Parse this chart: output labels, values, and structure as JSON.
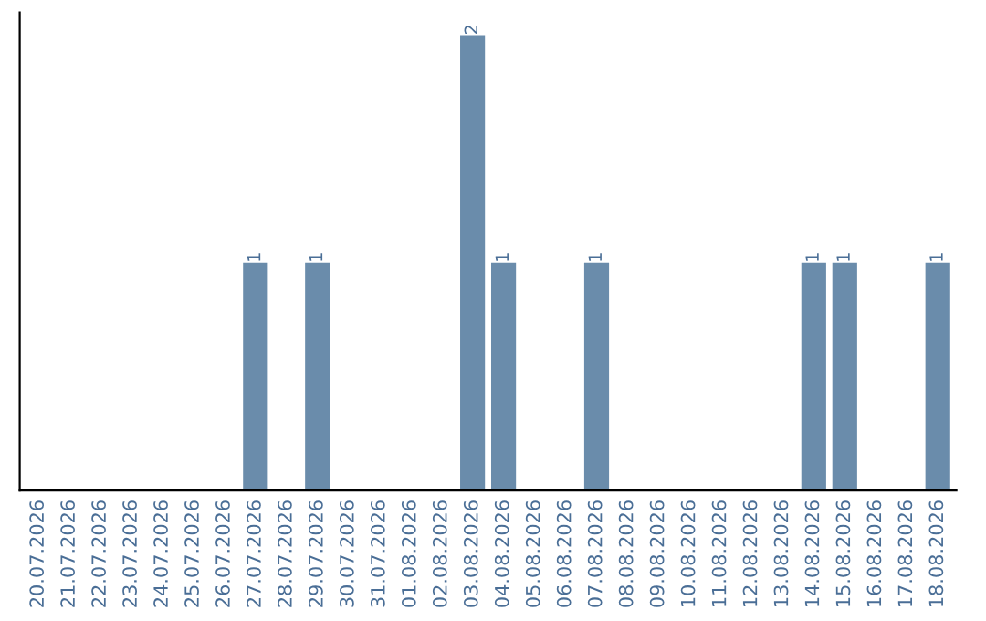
{
  "chart_data": {
    "type": "bar",
    "categories": [
      "20.07.2026",
      "21.07.2026",
      "22.07.2026",
      "23.07.2026",
      "24.07.2026",
      "25.07.2026",
      "26.07.2026",
      "27.07.2026",
      "28.07.2026",
      "29.07.2026",
      "30.07.2026",
      "31.07.2026",
      "01.08.2026",
      "02.08.2026",
      "03.08.2026",
      "04.08.2026",
      "05.08.2026",
      "06.08.2026",
      "07.08.2026",
      "08.08.2026",
      "09.08.2026",
      "10.08.2026",
      "11.08.2026",
      "12.08.2026",
      "13.08.2026",
      "14.08.2026",
      "15.08.2026",
      "16.08.2026",
      "17.08.2026",
      "18.08.2026"
    ],
    "values": [
      0,
      0,
      0,
      0,
      0,
      0,
      0,
      1,
      0,
      1,
      0,
      0,
      0,
      0,
      2,
      1,
      0,
      0,
      1,
      0,
      0,
      0,
      0,
      0,
      0,
      1,
      1,
      0,
      0,
      1
    ],
    "color": "#6a8cab",
    "value_labels": [
      null,
      null,
      null,
      null,
      null,
      null,
      null,
      "1",
      null,
      "1",
      null,
      null,
      null,
      null,
      "2",
      "1",
      null,
      null,
      "1",
      null,
      null,
      null,
      null,
      null,
      null,
      "1",
      "1",
      null,
      null,
      "1"
    ],
    "tick_labels": "x",
    "grid": false,
    "legend": false
  }
}
